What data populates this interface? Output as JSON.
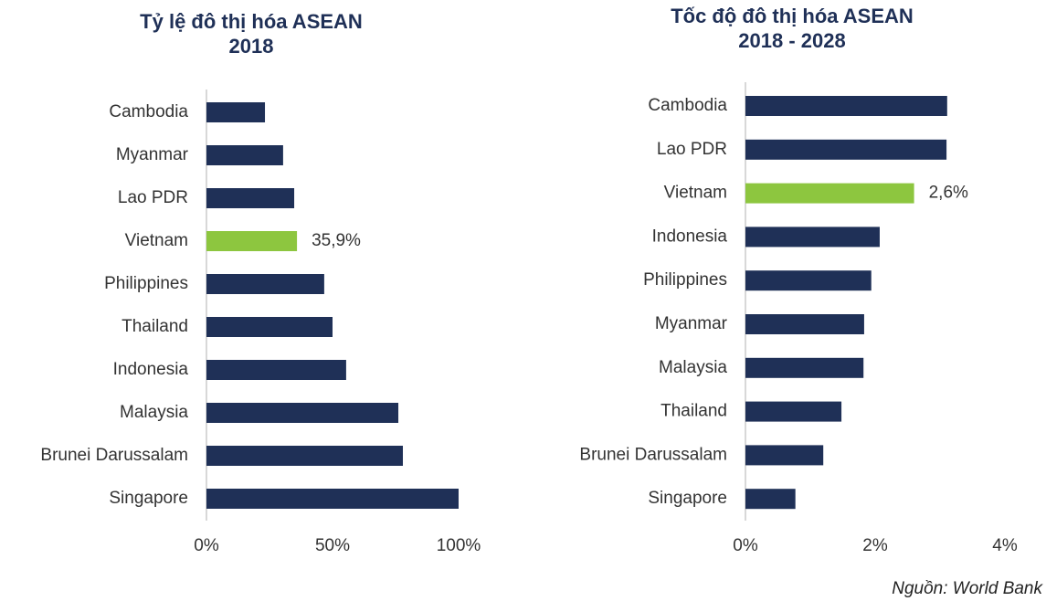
{
  "chart_data": [
    {
      "type": "barh",
      "title": "Tỷ lệ đô thị hóa ASEAN\n2018",
      "categories": [
        "Cambodia",
        "Myanmar",
        "Lao PDR",
        "Vietnam",
        "Philippines",
        "Thailand",
        "Indonesia",
        "Malaysia",
        "Brunei Darussalam",
        "Singapore"
      ],
      "values": [
        23.2,
        30.4,
        34.8,
        35.9,
        46.7,
        50.0,
        55.4,
        76.1,
        77.9,
        100
      ],
      "value_labels": [
        null,
        null,
        null,
        "35,9%",
        null,
        null,
        null,
        null,
        null,
        null
      ],
      "colors": [
        "#1f3057",
        "#1f3057",
        "#1f3057",
        "#8dc63f",
        "#1f3057",
        "#1f3057",
        "#1f3057",
        "#1f3057",
        "#1f3057",
        "#1f3057"
      ],
      "xlim": [
        0,
        100
      ],
      "xticks": [
        {
          "value": 0,
          "label": "0%"
        },
        {
          "value": 50,
          "label": "50%"
        },
        {
          "value": 100,
          "label": "100%"
        }
      ]
    },
    {
      "type": "barh",
      "title": "Tốc độ đô thị hóa ASEAN\n2018 - 2028",
      "categories": [
        "Cambodia",
        "Lao PDR",
        "Vietnam",
        "Indonesia",
        "Philippines",
        "Myanmar",
        "Malaysia",
        "Thailand",
        "Brunei Darussalam",
        "Singapore"
      ],
      "values": [
        3.11,
        3.1,
        2.6,
        2.07,
        1.94,
        1.83,
        1.82,
        1.48,
        1.2,
        0.77
      ],
      "value_labels": [
        null,
        null,
        "2,6%",
        null,
        null,
        null,
        null,
        null,
        null,
        null
      ],
      "colors": [
        "#1f3057",
        "#1f3057",
        "#8dc63f",
        "#1f3057",
        "#1f3057",
        "#1f3057",
        "#1f3057",
        "#1f3057",
        "#1f3057",
        "#1f3057"
      ],
      "xlim": [
        0,
        4
      ],
      "xticks": [
        {
          "value": 0,
          "label": "0%"
        },
        {
          "value": 2,
          "label": "2%"
        },
        {
          "value": 4,
          "label": "4%"
        }
      ]
    }
  ],
  "source": "Nguồn: World Bank"
}
